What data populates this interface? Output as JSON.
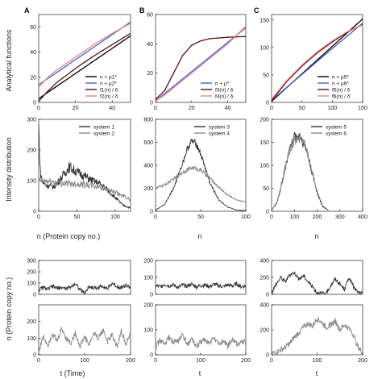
{
  "panel_letters": [
    "A",
    "B",
    "C"
  ],
  "ylabels": {
    "row1": "Analytical functions",
    "row2": "Intensity distribution",
    "row3": "n (Protein copy no.)"
  },
  "xlabels": {
    "row2": [
      "n (Protein copy no.)",
      "n",
      "n"
    ],
    "row3": [
      "t (Time)",
      "t",
      "t"
    ]
  },
  "colors": {
    "black": "#000000",
    "blue": "#4a5fc8",
    "darkred": "#5a0e12",
    "pink": "#e8858a",
    "dark_gray": "#333333",
    "light_gray": "#8a8a8a"
  },
  "chart_data": [
    {
      "id": "A1",
      "type": "line",
      "row": 0,
      "col": 0,
      "xlim": [
        0,
        50
      ],
      "ylim": [
        0,
        70
      ],
      "xticks": [
        0,
        20,
        40
      ],
      "yticks": [
        0,
        20,
        40,
        60
      ],
      "legend_position": "bottom-right",
      "series": [
        {
          "name": "n + μ1*",
          "color": "#000000",
          "x": [
            0,
            10,
            20,
            30,
            40,
            50
          ],
          "y": [
            3,
            13,
            23,
            33,
            43,
            53
          ]
        },
        {
          "name": "n + μ2*",
          "color": "#4a5fc8",
          "x": [
            0,
            10,
            20,
            30,
            40,
            50
          ],
          "y": [
            14,
            24,
            34,
            44,
            54,
            64
          ]
        },
        {
          "name": "f1(n) / δ",
          "color": "#5a0e12",
          "x": [
            0,
            5,
            10,
            20,
            30,
            40,
            50
          ],
          "y": [
            1,
            9,
            16,
            27,
            37,
            46,
            55
          ]
        },
        {
          "name": "f2(n) / δ",
          "color": "#e8858a",
          "x": [
            0,
            5,
            10,
            20,
            30,
            40,
            50
          ],
          "y": [
            12,
            20,
            26,
            36,
            46,
            55,
            63
          ]
        }
      ]
    },
    {
      "id": "B1",
      "type": "line",
      "row": 0,
      "col": 1,
      "xlim": [
        0,
        50
      ],
      "ylim": [
        0,
        60
      ],
      "xticks": [
        0,
        20,
        40
      ],
      "yticks": [
        0,
        20,
        40,
        60
      ],
      "legend_position": "bottom-right",
      "series": [
        {
          "name": "n + ρ*",
          "color": "#4a5fc8",
          "x": [
            0,
            10,
            20,
            30,
            40,
            50
          ],
          "y": [
            1,
            11,
            21,
            31,
            41,
            51
          ]
        },
        {
          "name": "f3(n) / δ",
          "color": "#5a0e12",
          "x": [
            0,
            5,
            10,
            15,
            20,
            25,
            30,
            40,
            50
          ],
          "y": [
            2,
            8,
            20,
            32,
            39,
            42,
            43.5,
            44.5,
            45
          ]
        },
        {
          "name": "f4(n) / δ",
          "color": "#e8858a",
          "x": [
            0,
            5,
            10,
            20,
            30,
            40,
            50
          ],
          "y": [
            1,
            5,
            10,
            20,
            30,
            40,
            52
          ]
        }
      ]
    },
    {
      "id": "C1",
      "type": "line",
      "row": 0,
      "col": 2,
      "xlim": [
        0,
        150
      ],
      "ylim": [
        0,
        160
      ],
      "xticks": [
        0,
        50,
        100,
        150
      ],
      "yticks": [
        0,
        50,
        100,
        150
      ],
      "legend_position": "bottom-right",
      "series": [
        {
          "name": "n + μ5*",
          "color": "#000000",
          "x": [
            0,
            50,
            100,
            150
          ],
          "y": [
            2,
            52,
            102,
            152
          ]
        },
        {
          "name": "n + μ6*",
          "color": "#4a5fc8",
          "x": [
            0,
            50,
            100,
            150
          ],
          "y": [
            4,
            51,
            98,
            144
          ]
        },
        {
          "name": "f5(n) / δ",
          "color": "#5a0e12",
          "x": [
            0,
            25,
            50,
            75,
            100,
            125,
            150
          ],
          "y": [
            3,
            38,
            66,
            90,
            110,
            128,
            142
          ]
        },
        {
          "name": "f6(n) / δ",
          "color": "#e8858a",
          "x": [
            0,
            25,
            50,
            75,
            100,
            125,
            150
          ],
          "y": [
            6,
            40,
            68,
            92,
            112,
            129,
            141
          ]
        }
      ]
    },
    {
      "id": "A2",
      "type": "line",
      "row": 1,
      "col": 0,
      "xlim": [
        0,
        120
      ],
      "ylim": [
        0,
        300
      ],
      "xticks": [
        0,
        50,
        100
      ],
      "yticks": [
        0,
        100,
        200,
        300
      ],
      "legend_position": "top-right",
      "noise": 0.12,
      "series": [
        {
          "name": "system 1",
          "color": "#333333",
          "x": [
            0,
            2,
            5,
            10,
            20,
            30,
            40,
            50,
            60,
            70,
            80,
            90,
            100,
            110,
            120
          ],
          "y": [
            280,
            130,
            95,
            85,
            80,
            110,
            145,
            128,
            115,
            100,
            90,
            70,
            45,
            20,
            10
          ]
        },
        {
          "name": "system 2",
          "color": "#8a8a8a",
          "x": [
            0,
            10,
            20,
            30,
            40,
            50,
            60,
            70,
            80,
            90,
            100,
            110,
            120
          ],
          "y": [
            100,
            98,
            95,
            92,
            90,
            90,
            88,
            82,
            80,
            70,
            60,
            50,
            38
          ]
        }
      ]
    },
    {
      "id": "B2",
      "type": "line",
      "row": 1,
      "col": 1,
      "xlim": [
        0,
        100
      ],
      "ylim": [
        0,
        800
      ],
      "xticks": [
        0,
        50,
        100
      ],
      "yticks": [
        0,
        200,
        400,
        600,
        800
      ],
      "legend_position": "top-right",
      "noise": 0.05,
      "series": [
        {
          "name": "system 3",
          "color": "#333333",
          "x": [
            0,
            10,
            20,
            30,
            35,
            40,
            45,
            50,
            55,
            60,
            70,
            80,
            90,
            100
          ],
          "y": [
            10,
            60,
            200,
            420,
            540,
            610,
            590,
            500,
            380,
            250,
            100,
            35,
            10,
            5
          ]
        },
        {
          "name": "system 4",
          "color": "#8a8a8a",
          "x": [
            0,
            10,
            20,
            30,
            40,
            50,
            60,
            70,
            80,
            90,
            100
          ],
          "y": [
            200,
            230,
            280,
            340,
            380,
            360,
            290,
            210,
            140,
            100,
            80
          ]
        }
      ]
    },
    {
      "id": "C2",
      "type": "line",
      "row": 1,
      "col": 2,
      "xlim": [
        0,
        400
      ],
      "ylim": [
        0,
        200
      ],
      "xticks": [
        0,
        100,
        200,
        300,
        400
      ],
      "yticks": [
        0,
        50,
        100,
        150,
        200
      ],
      "legend_position": "top-right",
      "noise": 0.08,
      "series": [
        {
          "name": "system 5",
          "color": "#333333",
          "x": [
            0,
            25,
            50,
            75,
            100,
            125,
            150,
            175,
            200,
            225,
            250
          ],
          "y": [
            2,
            20,
            70,
            130,
            160,
            165,
            140,
            90,
            40,
            10,
            2
          ]
        },
        {
          "name": "system 6",
          "color": "#8a8a8a",
          "x": [
            0,
            25,
            50,
            75,
            100,
            125,
            150,
            175,
            200,
            225,
            250
          ],
          "y": [
            2,
            22,
            72,
            128,
            155,
            160,
            138,
            92,
            42,
            12,
            2
          ]
        }
      ]
    },
    {
      "id": "A3a",
      "type": "line",
      "row": 2,
      "col": 0,
      "xlim": [
        0,
        200
      ],
      "ylim": [
        0,
        300
      ],
      "xticks": [],
      "yticks": [
        0,
        100,
        200,
        300
      ],
      "series": [
        {
          "color": "#333333",
          "x": [
            0,
            10,
            20,
            30,
            40,
            50,
            60,
            70,
            80,
            90,
            100,
            110,
            120,
            130,
            140,
            150,
            160,
            170,
            180,
            190,
            200
          ],
          "y": [
            40,
            60,
            45,
            70,
            55,
            60,
            50,
            65,
            100,
            40,
            10,
            70,
            55,
            60,
            75,
            50,
            100,
            70,
            60,
            80,
            60
          ]
        }
      ]
    },
    {
      "id": "A3b",
      "type": "line",
      "row": 3,
      "col": 0,
      "xlim": [
        0,
        200
      ],
      "ylim": [
        0,
        300
      ],
      "xticks": [
        0,
        100,
        200
      ],
      "yticks": [
        0,
        100,
        200
      ],
      "series": [
        {
          "color": "#8a8a8a",
          "x": [
            0,
            10,
            20,
            30,
            40,
            50,
            60,
            70,
            80,
            90,
            100,
            110,
            120,
            130,
            140,
            150,
            160,
            170,
            180,
            190,
            200
          ],
          "y": [
            20,
            110,
            60,
            130,
            80,
            160,
            100,
            70,
            130,
            50,
            110,
            60,
            130,
            100,
            150,
            80,
            120,
            50,
            140,
            70,
            120
          ]
        }
      ]
    },
    {
      "id": "B3a",
      "type": "line",
      "row": 2,
      "col": 1,
      "xlim": [
        0,
        200
      ],
      "ylim": [
        0,
        200
      ],
      "xticks": [],
      "yticks": [
        0,
        100,
        200
      ],
      "series": [
        {
          "color": "#333333",
          "x": [
            0,
            10,
            20,
            30,
            40,
            50,
            60,
            70,
            80,
            90,
            100,
            110,
            120,
            130,
            140,
            150,
            160,
            170,
            180,
            190,
            200
          ],
          "y": [
            50,
            45,
            60,
            50,
            55,
            40,
            55,
            50,
            60,
            45,
            50,
            55,
            45,
            60,
            50,
            45,
            55,
            50,
            60,
            45,
            50
          ]
        }
      ]
    },
    {
      "id": "B3b",
      "type": "line",
      "row": 3,
      "col": 1,
      "xlim": [
        0,
        200
      ],
      "ylim": [
        0,
        200
      ],
      "xticks": [
        0,
        100,
        200
      ],
      "yticks": [
        0,
        100,
        200
      ],
      "series": [
        {
          "color": "#8a8a8a",
          "x": [
            0,
            10,
            20,
            30,
            40,
            50,
            60,
            70,
            80,
            90,
            100,
            110,
            120,
            130,
            140,
            150,
            160,
            170,
            180,
            190,
            200
          ],
          "y": [
            30,
            60,
            40,
            70,
            50,
            55,
            80,
            40,
            65,
            30,
            50,
            60,
            45,
            70,
            40,
            55,
            35,
            60,
            45,
            50,
            55
          ]
        }
      ]
    },
    {
      "id": "C3a",
      "type": "line",
      "row": 2,
      "col": 2,
      "xlim": [
        0,
        200
      ],
      "ylim": [
        0,
        400
      ],
      "xticks": [],
      "yticks": [
        0,
        200,
        400
      ],
      "series": [
        {
          "color": "#333333",
          "x": [
            0,
            10,
            20,
            30,
            40,
            50,
            60,
            70,
            80,
            90,
            100,
            110,
            120,
            130,
            140,
            150,
            160,
            170,
            180,
            190,
            200
          ],
          "y": [
            20,
            120,
            200,
            150,
            230,
            260,
            180,
            220,
            150,
            90,
            20,
            10,
            5,
            110,
            180,
            120,
            60,
            200,
            90,
            20,
            10
          ]
        }
      ]
    },
    {
      "id": "C3b",
      "type": "line",
      "row": 3,
      "col": 2,
      "xlim": [
        0,
        200
      ],
      "ylim": [
        0,
        400
      ],
      "xticks": [
        0,
        100,
        200
      ],
      "yticks": [
        0,
        200,
        400
      ],
      "series": [
        {
          "color": "#8a8a8a",
          "x": [
            0,
            10,
            20,
            30,
            40,
            50,
            60,
            70,
            80,
            90,
            100,
            110,
            120,
            130,
            140,
            150,
            160,
            170,
            180,
            190,
            200
          ],
          "y": [
            10,
            20,
            40,
            60,
            90,
            140,
            180,
            220,
            250,
            230,
            290,
            260,
            220,
            240,
            270,
            200,
            240,
            210,
            160,
            60,
            20
          ]
        }
      ]
    }
  ]
}
